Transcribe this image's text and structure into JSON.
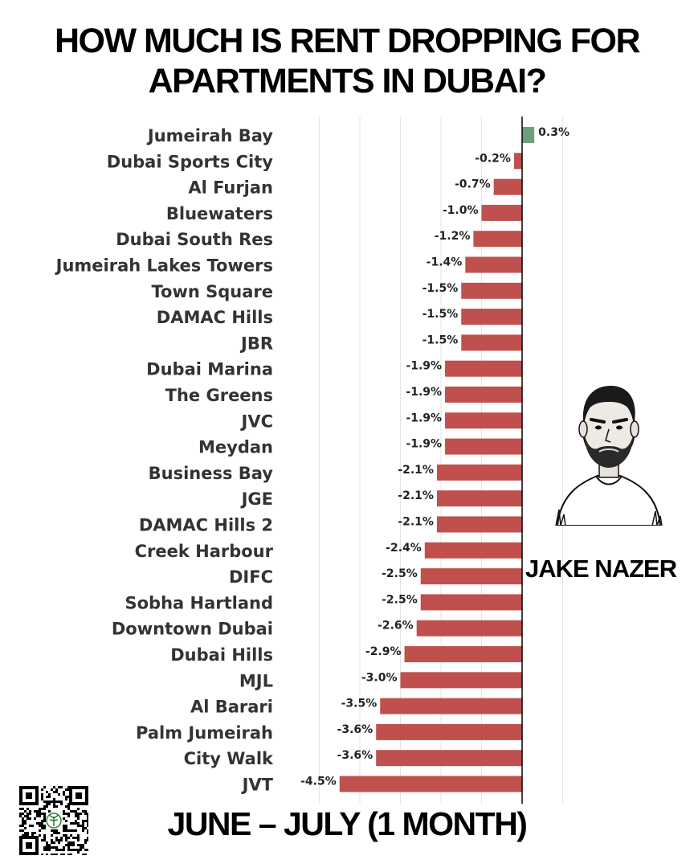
{
  "title": "HOW MUCH IS RENT DROPPING FOR APARTMENTS IN DUBAI?",
  "subtitle": "JUNE – JULY (1 MONTH)",
  "author": "JAKE NAZER",
  "colors": {
    "positive": "#6e9e7c",
    "negative": "#c0504d",
    "grid": "#e4e4e4",
    "axis": "#000000"
  },
  "chart_data": {
    "type": "bar",
    "orientation": "horizontal",
    "title": "HOW MUCH IS RENT DROPPING FOR APARTMENTS IN DUBAI?",
    "xlabel": "JUNE – JULY (1 MONTH)",
    "unit": "%",
    "xlim": [
      -5.5,
      1.0
    ],
    "grid": true,
    "categories": [
      "Jumeirah Bay",
      "Dubai Sports City",
      "Al Furjan",
      "Bluewaters",
      "Dubai South Res",
      "Jumeirah Lakes Towers",
      "Town Square",
      "DAMAC Hills",
      "JBR",
      "Dubai Marina",
      "The Greens",
      "JVC",
      "Meydan",
      "Business Bay",
      "JGE",
      "DAMAC Hills 2",
      "Creek Harbour",
      "DIFC",
      "Sobha Hartland",
      "Downtown Dubai",
      "Dubai Hills",
      "MJL",
      "Al Barari",
      "Palm Jumeirah",
      "City Walk",
      "JVT"
    ],
    "values": [
      0.3,
      -0.2,
      -0.7,
      -1.0,
      -1.2,
      -1.4,
      -1.5,
      -1.5,
      -1.5,
      -1.9,
      -1.9,
      -1.9,
      -1.9,
      -2.1,
      -2.1,
      -2.1,
      -2.4,
      -2.5,
      -2.5,
      -2.6,
      -2.9,
      -3.0,
      -3.5,
      -3.6,
      -3.6,
      -4.5
    ],
    "value_labels": [
      "0.3%",
      "-0.2%",
      "-0.7%",
      "-1.0%",
      "-1.2%",
      "-1.4%",
      "-1.5%",
      "-1.5%",
      "-1.5%",
      "-1.9%",
      "-1.9%",
      "-1.9%",
      "-1.9%",
      "-2.1%",
      "-2.1%",
      "-2.1%",
      "-2.4%",
      "-2.5%",
      "-2.5%",
      "-2.6%",
      "-2.9%",
      "-3.0%",
      "-3.5%",
      "-3.6%",
      "-3.6%",
      "-4.5%"
    ]
  }
}
